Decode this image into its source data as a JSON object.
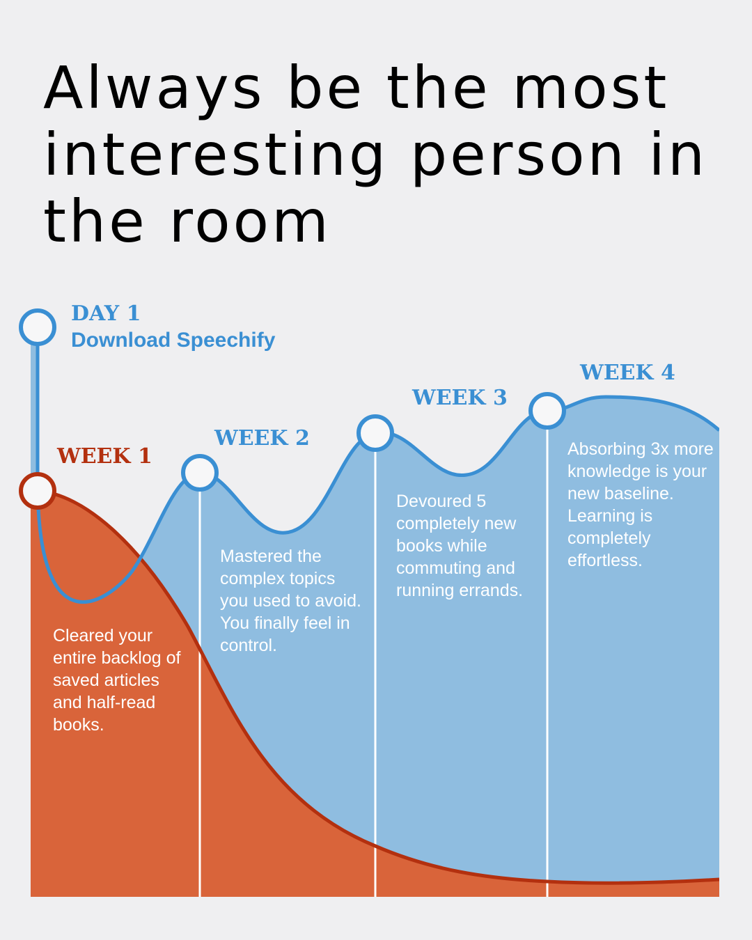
{
  "headline": "Always be the most interesting person in the room",
  "milestones": {
    "day1": {
      "label": "DAY 1",
      "sublabel": "Download Speechify"
    },
    "week1": {
      "label": "WEEK 1",
      "text": "Cleared your entire backlog of saved articles and half-read books."
    },
    "week2": {
      "label": "WEEK 2",
      "text": "Mastered the complex topics you used to avoid. You finally feel in control."
    },
    "week3": {
      "label": "WEEK 3",
      "text": "Devoured 5 completely new books while commuting and running errands."
    },
    "week4": {
      "label": "WEEK 4",
      "text": "Absorbing 3x more knowledge is your new baseline. Learning is completely effortless."
    }
  },
  "colors": {
    "background": "#efeff1",
    "blue_line": "#3a8fd3",
    "blue_fill": "#8fbde0",
    "orange_line": "#b3300f",
    "orange_fill": "#d9643a",
    "text_dark": "#000000",
    "text_white": "#ffffff"
  }
}
